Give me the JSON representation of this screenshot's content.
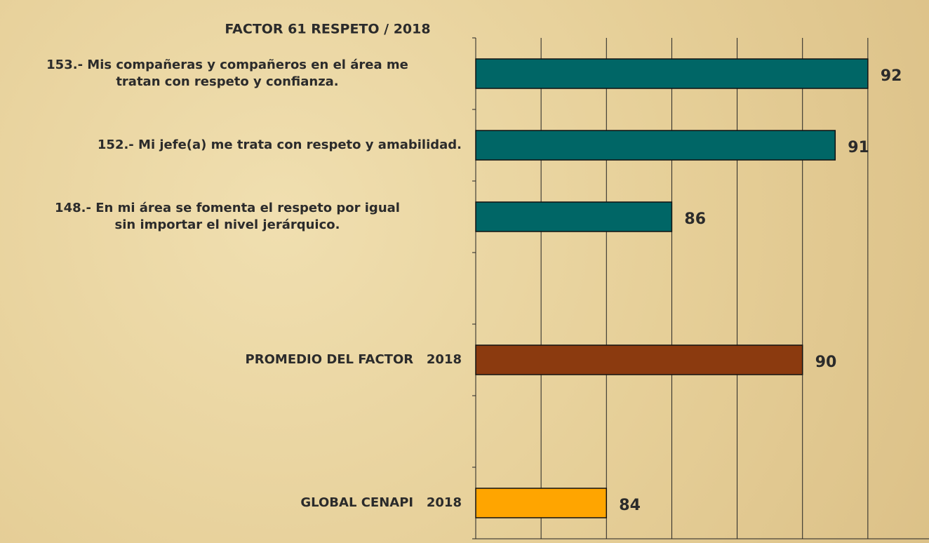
{
  "chart_data": {
    "type": "barh",
    "title": "FACTOR 61 RESPETO / 2018",
    "categories": [
      "153.- Mis compañeras y compañeros en el área me\ntratan con respeto y confianza.",
      "152.- Mi jefe(a) me trata con respeto y amabilidad.",
      "148.- En mi área se fomenta el respeto por igual\nsin importar el nivel jerárquico.",
      null,
      "PROMEDIO DEL FACTOR   2018",
      null,
      "GLOBAL CENAPI   2018"
    ],
    "values": [
      92,
      91,
      86,
      null,
      90,
      null,
      84
    ],
    "colors": [
      "#006666",
      "#006666",
      "#006666",
      null,
      "#8b3a0f",
      null,
      "#ffa500"
    ],
    "xlim": [
      80,
      94
    ],
    "xticks": [
      80,
      82,
      84,
      86,
      88,
      90,
      92,
      94
    ],
    "grid": true
  }
}
